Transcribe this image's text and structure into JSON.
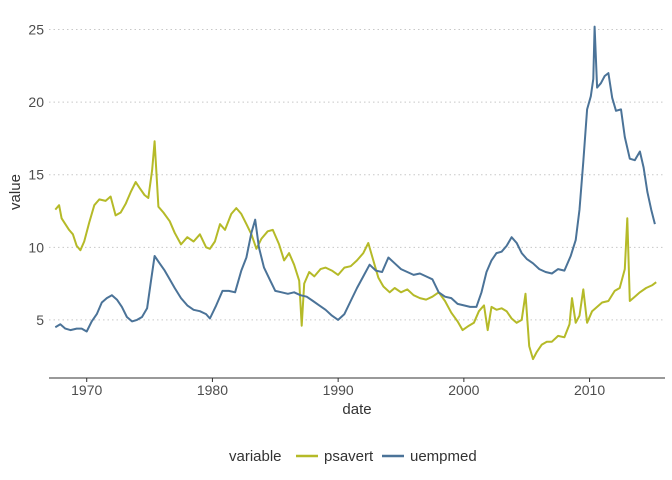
{
  "chart_data": {
    "type": "line",
    "title": "",
    "xlabel": "date",
    "ylabel": "value",
    "xlim": [
      1967.0,
      2016.0
    ],
    "ylim": [
      1.0,
      26.0
    ],
    "x_ticks": [
      1970,
      1980,
      1990,
      2000,
      2010
    ],
    "y_ticks": [
      5,
      10,
      15,
      20,
      25
    ],
    "grid": "horizontal dotted major lines",
    "legend": {
      "position": "bottom",
      "title": "variable"
    },
    "series": [
      {
        "name": "psavert",
        "color": "#B5BA28",
        "points": [
          [
            1967.5,
            12.6
          ],
          [
            1967.8,
            12.9
          ],
          [
            1968.0,
            12.0
          ],
          [
            1968.3,
            11.6
          ],
          [
            1968.6,
            11.2
          ],
          [
            1968.9,
            10.9
          ],
          [
            1969.2,
            10.1
          ],
          [
            1969.5,
            9.8
          ],
          [
            1969.8,
            10.4
          ],
          [
            1970.2,
            11.7
          ],
          [
            1970.6,
            12.9
          ],
          [
            1971.0,
            13.3
          ],
          [
            1971.5,
            13.2
          ],
          [
            1971.9,
            13.5
          ],
          [
            1972.3,
            12.2
          ],
          [
            1972.7,
            12.4
          ],
          [
            1973.1,
            13.0
          ],
          [
            1973.5,
            13.8
          ],
          [
            1973.9,
            14.5
          ],
          [
            1974.2,
            14.1
          ],
          [
            1974.6,
            13.6
          ],
          [
            1974.9,
            13.4
          ],
          [
            1975.2,
            15.3
          ],
          [
            1975.4,
            17.3
          ],
          [
            1975.7,
            12.8
          ],
          [
            1976.1,
            12.4
          ],
          [
            1976.6,
            11.8
          ],
          [
            1977.0,
            11.0
          ],
          [
            1977.5,
            10.2
          ],
          [
            1978.0,
            10.7
          ],
          [
            1978.5,
            10.4
          ],
          [
            1979.0,
            10.9
          ],
          [
            1979.5,
            10.0
          ],
          [
            1979.8,
            9.9
          ],
          [
            1980.2,
            10.4
          ],
          [
            1980.6,
            11.6
          ],
          [
            1981.0,
            11.2
          ],
          [
            1981.5,
            12.3
          ],
          [
            1981.9,
            12.7
          ],
          [
            1982.3,
            12.3
          ],
          [
            1982.7,
            11.6
          ],
          [
            1983.1,
            10.9
          ],
          [
            1983.5,
            9.9
          ],
          [
            1983.9,
            10.6
          ],
          [
            1984.4,
            11.1
          ],
          [
            1984.8,
            11.2
          ],
          [
            1985.3,
            10.2
          ],
          [
            1985.7,
            9.1
          ],
          [
            1986.1,
            9.6
          ],
          [
            1986.5,
            8.8
          ],
          [
            1986.9,
            7.7
          ],
          [
            1987.1,
            4.6
          ],
          [
            1987.3,
            7.5
          ],
          [
            1987.7,
            8.3
          ],
          [
            1988.1,
            8.0
          ],
          [
            1988.6,
            8.5
          ],
          [
            1989.0,
            8.6
          ],
          [
            1989.5,
            8.4
          ],
          [
            1990.0,
            8.1
          ],
          [
            1990.5,
            8.6
          ],
          [
            1991.0,
            8.7
          ],
          [
            1991.5,
            9.1
          ],
          [
            1992.0,
            9.6
          ],
          [
            1992.4,
            10.3
          ],
          [
            1992.8,
            9.1
          ],
          [
            1993.2,
            7.9
          ],
          [
            1993.6,
            7.3
          ],
          [
            1994.1,
            6.9
          ],
          [
            1994.5,
            7.2
          ],
          [
            1995.0,
            6.9
          ],
          [
            1995.5,
            7.1
          ],
          [
            1996.0,
            6.7
          ],
          [
            1996.5,
            6.5
          ],
          [
            1997.0,
            6.4
          ],
          [
            1997.5,
            6.6
          ],
          [
            1998.0,
            6.9
          ],
          [
            1998.5,
            6.3
          ],
          [
            1999.0,
            5.5
          ],
          [
            1999.5,
            4.9
          ],
          [
            1999.9,
            4.3
          ],
          [
            2000.4,
            4.6
          ],
          [
            2000.8,
            4.8
          ],
          [
            2001.2,
            5.6
          ],
          [
            2001.6,
            6.0
          ],
          [
            2001.9,
            4.3
          ],
          [
            2002.2,
            5.9
          ],
          [
            2002.6,
            5.7
          ],
          [
            2003.0,
            5.8
          ],
          [
            2003.4,
            5.6
          ],
          [
            2003.8,
            5.1
          ],
          [
            2004.2,
            4.8
          ],
          [
            2004.6,
            5.0
          ],
          [
            2004.9,
            6.8
          ],
          [
            2005.2,
            3.2
          ],
          [
            2005.5,
            2.3
          ],
          [
            2005.8,
            2.8
          ],
          [
            2006.2,
            3.3
          ],
          [
            2006.6,
            3.5
          ],
          [
            2007.0,
            3.5
          ],
          [
            2007.5,
            3.9
          ],
          [
            2008.0,
            3.8
          ],
          [
            2008.4,
            4.7
          ],
          [
            2008.6,
            6.5
          ],
          [
            2008.9,
            4.8
          ],
          [
            2009.2,
            5.3
          ],
          [
            2009.5,
            7.1
          ],
          [
            2009.8,
            4.8
          ],
          [
            2010.2,
            5.6
          ],
          [
            2010.6,
            5.9
          ],
          [
            2011.0,
            6.2
          ],
          [
            2011.5,
            6.3
          ],
          [
            2012.0,
            7.0
          ],
          [
            2012.4,
            7.2
          ],
          [
            2012.8,
            8.5
          ],
          [
            2013.0,
            12.0
          ],
          [
            2013.2,
            6.3
          ],
          [
            2013.6,
            6.6
          ],
          [
            2014.0,
            6.9
          ],
          [
            2014.5,
            7.2
          ],
          [
            2015.0,
            7.4
          ],
          [
            2015.3,
            7.6
          ]
        ]
      },
      {
        "name": "uempmed",
        "color": "#4B7398",
        "points": [
          [
            1967.5,
            4.5
          ],
          [
            1967.9,
            4.7
          ],
          [
            1968.3,
            4.4
          ],
          [
            1968.7,
            4.3
          ],
          [
            1969.2,
            4.4
          ],
          [
            1969.6,
            4.4
          ],
          [
            1970.0,
            4.2
          ],
          [
            1970.4,
            4.9
          ],
          [
            1970.8,
            5.4
          ],
          [
            1971.2,
            6.2
          ],
          [
            1971.6,
            6.5
          ],
          [
            1972.0,
            6.7
          ],
          [
            1972.4,
            6.4
          ],
          [
            1972.8,
            5.9
          ],
          [
            1973.2,
            5.2
          ],
          [
            1973.6,
            4.9
          ],
          [
            1974.0,
            5.0
          ],
          [
            1974.4,
            5.2
          ],
          [
            1974.8,
            5.8
          ],
          [
            1975.1,
            7.6
          ],
          [
            1975.4,
            9.4
          ],
          [
            1975.8,
            8.9
          ],
          [
            1976.2,
            8.4
          ],
          [
            1976.6,
            7.8
          ],
          [
            1977.0,
            7.2
          ],
          [
            1977.5,
            6.5
          ],
          [
            1978.0,
            6.0
          ],
          [
            1978.5,
            5.7
          ],
          [
            1979.0,
            5.6
          ],
          [
            1979.5,
            5.4
          ],
          [
            1979.8,
            5.1
          ],
          [
            1980.3,
            6.0
          ],
          [
            1980.8,
            7.0
          ],
          [
            1981.3,
            7.0
          ],
          [
            1981.8,
            6.9
          ],
          [
            1982.3,
            8.4
          ],
          [
            1982.7,
            9.3
          ],
          [
            1983.1,
            11.0
          ],
          [
            1983.4,
            11.9
          ],
          [
            1983.7,
            10.0
          ],
          [
            1984.1,
            8.6
          ],
          [
            1984.6,
            7.7
          ],
          [
            1985.0,
            7.0
          ],
          [
            1985.5,
            6.9
          ],
          [
            1986.0,
            6.8
          ],
          [
            1986.5,
            6.9
          ],
          [
            1987.0,
            6.7
          ],
          [
            1987.5,
            6.6
          ],
          [
            1988.0,
            6.3
          ],
          [
            1988.5,
            6.0
          ],
          [
            1989.0,
            5.7
          ],
          [
            1989.5,
            5.3
          ],
          [
            1990.0,
            5.0
          ],
          [
            1990.5,
            5.4
          ],
          [
            1991.0,
            6.3
          ],
          [
            1991.5,
            7.2
          ],
          [
            1992.0,
            8.0
          ],
          [
            1992.5,
            8.8
          ],
          [
            1993.0,
            8.4
          ],
          [
            1993.5,
            8.3
          ],
          [
            1994.0,
            9.3
          ],
          [
            1994.5,
            8.9
          ],
          [
            1995.0,
            8.5
          ],
          [
            1995.5,
            8.3
          ],
          [
            1996.0,
            8.1
          ],
          [
            1996.5,
            8.2
          ],
          [
            1997.0,
            8.0
          ],
          [
            1997.5,
            7.8
          ],
          [
            1998.0,
            6.9
          ],
          [
            1998.5,
            6.6
          ],
          [
            1999.0,
            6.5
          ],
          [
            1999.5,
            6.1
          ],
          [
            2000.0,
            6.0
          ],
          [
            2000.5,
            5.9
          ],
          [
            2001.0,
            5.9
          ],
          [
            2001.4,
            6.9
          ],
          [
            2001.8,
            8.3
          ],
          [
            2002.2,
            9.1
          ],
          [
            2002.6,
            9.6
          ],
          [
            2003.0,
            9.7
          ],
          [
            2003.4,
            10.1
          ],
          [
            2003.8,
            10.7
          ],
          [
            2004.2,
            10.3
          ],
          [
            2004.6,
            9.6
          ],
          [
            2005.0,
            9.2
          ],
          [
            2005.5,
            8.9
          ],
          [
            2006.0,
            8.5
          ],
          [
            2006.5,
            8.3
          ],
          [
            2007.0,
            8.2
          ],
          [
            2007.5,
            8.5
          ],
          [
            2008.0,
            8.4
          ],
          [
            2008.5,
            9.4
          ],
          [
            2008.9,
            10.5
          ],
          [
            2009.2,
            12.6
          ],
          [
            2009.5,
            15.9
          ],
          [
            2009.8,
            19.5
          ],
          [
            2010.1,
            20.4
          ],
          [
            2010.3,
            21.6
          ],
          [
            2010.4,
            25.2
          ],
          [
            2010.6,
            21.0
          ],
          [
            2010.9,
            21.3
          ],
          [
            2011.2,
            21.8
          ],
          [
            2011.5,
            22.0
          ],
          [
            2011.8,
            20.3
          ],
          [
            2012.1,
            19.4
          ],
          [
            2012.5,
            19.5
          ],
          [
            2012.8,
            17.6
          ],
          [
            2013.2,
            16.1
          ],
          [
            2013.6,
            16.0
          ],
          [
            2014.0,
            16.6
          ],
          [
            2014.3,
            15.5
          ],
          [
            2014.6,
            13.8
          ],
          [
            2014.9,
            12.6
          ],
          [
            2015.2,
            11.6
          ]
        ]
      }
    ]
  }
}
